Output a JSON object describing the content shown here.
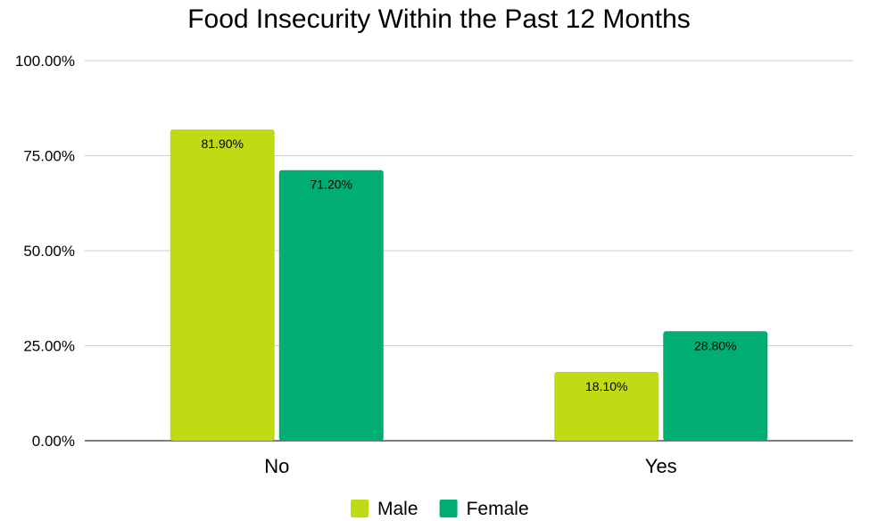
{
  "chart_data": {
    "type": "bar",
    "title": "Food Insecurity Within the Past 12 Months",
    "categories": [
      "No",
      "Yes"
    ],
    "series": [
      {
        "name": "Male",
        "values": [
          81.9,
          18.1
        ],
        "labels": [
          "81.90%",
          "18.10%"
        ],
        "color": "#bedb14"
      },
      {
        "name": "Female",
        "values": [
          71.2,
          28.8
        ],
        "labels": [
          "71.20%",
          "28.80%"
        ],
        "color": "#00ad72"
      }
    ],
    "xlabel": "",
    "ylabel": "",
    "ylim": [
      0,
      100
    ],
    "yticks": [
      {
        "value": 0,
        "label": "0.00%"
      },
      {
        "value": 25,
        "label": "25.00%"
      },
      {
        "value": 50,
        "label": "50.00%"
      },
      {
        "value": 75,
        "label": "75.00%"
      },
      {
        "value": 100,
        "label": "100.00%"
      }
    ],
    "grid": true,
    "legend_position": "bottom"
  }
}
